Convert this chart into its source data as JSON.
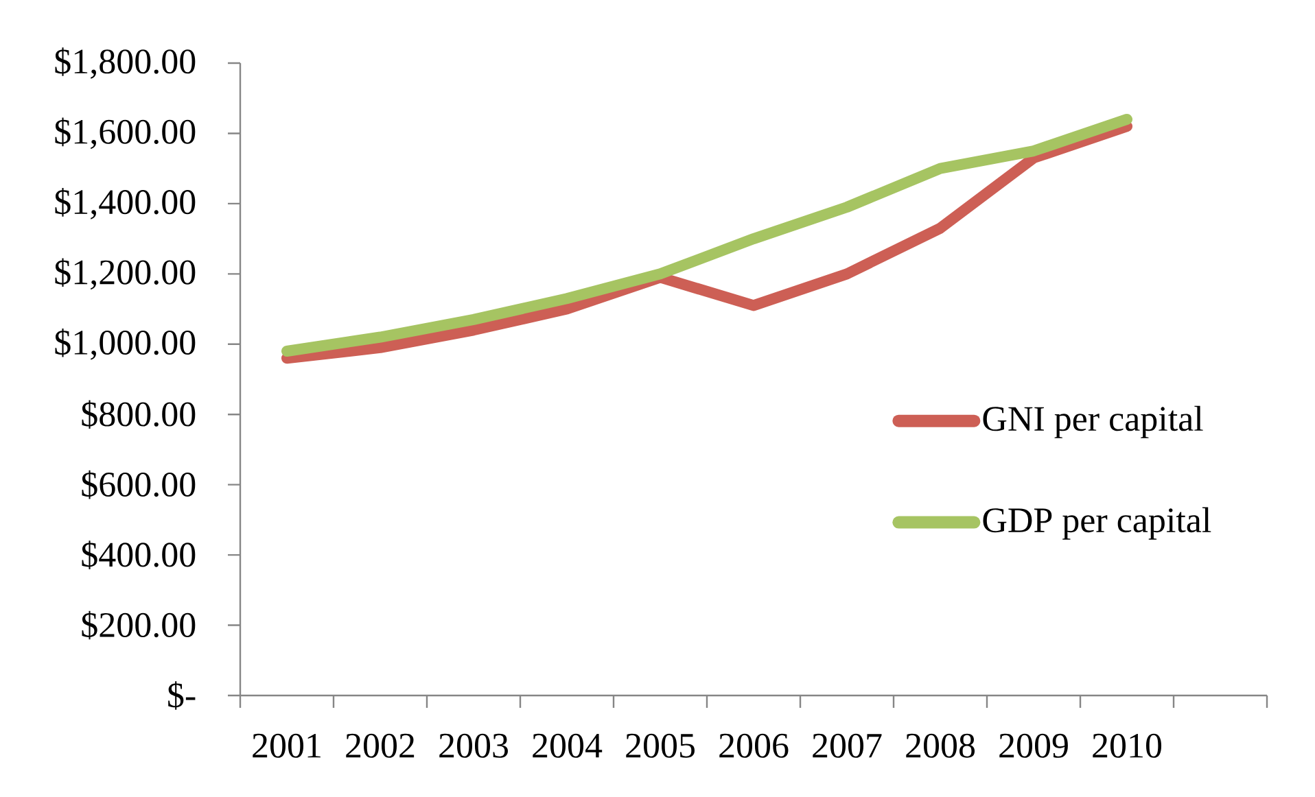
{
  "chart_data": {
    "type": "line",
    "categories": [
      "2001",
      "2002",
      "2003",
      "2004",
      "2005",
      "2006",
      "2007",
      "2008",
      "2009",
      "2010",
      null
    ],
    "series": [
      {
        "name": "GNI per capital",
        "color": "#cd5f55",
        "values": [
          960,
          990,
          1040,
          1100,
          1190,
          1110,
          1200,
          1330,
          1530,
          1620,
          null
        ]
      },
      {
        "name": "GDP per capital",
        "color": "#a6c462",
        "values": [
          980,
          1020,
          1070,
          1130,
          1200,
          1300,
          1390,
          1500,
          1550,
          1640,
          null
        ]
      }
    ],
    "ylim": [
      0,
      1800
    ],
    "yticks": [
      {
        "value": 0,
        "label": "$-"
      },
      {
        "value": 200,
        "label": "$200.00"
      },
      {
        "value": 400,
        "label": "$400.00"
      },
      {
        "value": 600,
        "label": "$600.00"
      },
      {
        "value": 800,
        "label": "$800.00"
      },
      {
        "value": 1000,
        "label": "$1,000.00"
      },
      {
        "value": 1200,
        "label": "$1,200.00"
      },
      {
        "value": 1400,
        "label": "$1,400.00"
      },
      {
        "value": 1600,
        "label": "$1,600.00"
      },
      {
        "value": 1800,
        "label": "$1,800.00"
      }
    ],
    "legend": "right"
  }
}
